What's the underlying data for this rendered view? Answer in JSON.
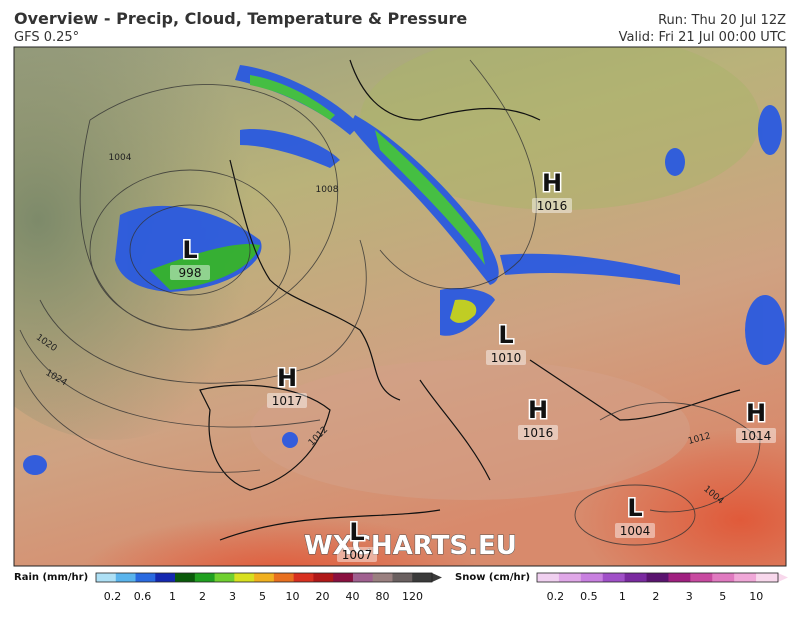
{
  "header": {
    "title": "Overview - Precip, Cloud, Temperature & Pressure",
    "model": "GFS 0.25°",
    "run": "Run: Thu 20 Jul 12Z",
    "valid": "Valid: Fri 21 Jul 00:00 UTC"
  },
  "pressure_centers": [
    {
      "type": "L",
      "value": 998
    },
    {
      "type": "H",
      "value": 1016
    },
    {
      "type": "L",
      "value": 1010
    },
    {
      "type": "H",
      "value": 1017
    },
    {
      "type": "H",
      "value": 1016
    },
    {
      "type": "H",
      "value": 1014
    },
    {
      "type": "L",
      "value": 1004
    },
    {
      "type": "L",
      "value": 1007
    }
  ],
  "isobar_labels": [
    1004,
    1008,
    1020,
    1024,
    1012,
    1012,
    1004
  ],
  "watermark": "WXCHARTS.EU",
  "rain_legend": {
    "title": "Rain (mm/hr)",
    "colors": [
      "#aee0f5",
      "#5ab4ec",
      "#2a6ae0",
      "#1428b0",
      "#0a5a0a",
      "#20a020",
      "#70d030",
      "#d8e020",
      "#f0b020",
      "#e87020",
      "#d83020",
      "#b01818",
      "#8a1040",
      "#a06090",
      "#9a8080",
      "#6a6060",
      "#3a3a3a"
    ],
    "ticks": [
      0.2,
      0.6,
      1,
      2,
      3,
      5,
      10,
      20,
      40,
      80,
      120
    ]
  },
  "snow_legend": {
    "title": "Snow (cm/hr)",
    "colors": [
      "#f0d0f0",
      "#e0a8e8",
      "#c880e0",
      "#a050c8",
      "#7a2aa0",
      "#5a1470",
      "#a02080",
      "#c84aa0",
      "#e07ac0",
      "#f0a8d8",
      "#f8d8ec"
    ],
    "ticks": [
      0.2,
      0.5,
      1,
      2,
      3,
      5,
      10
    ]
  }
}
